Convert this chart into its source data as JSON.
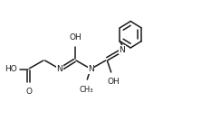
{
  "bg_color": "#ffffff",
  "line_color": "#1a1a1a",
  "line_width": 1.1,
  "font_size": 6.5,
  "fig_width": 2.33,
  "fig_height": 1.44,
  "dpi": 100,
  "xlim": [
    0,
    10.5
  ],
  "ylim": [
    0.5,
    6.5
  ]
}
